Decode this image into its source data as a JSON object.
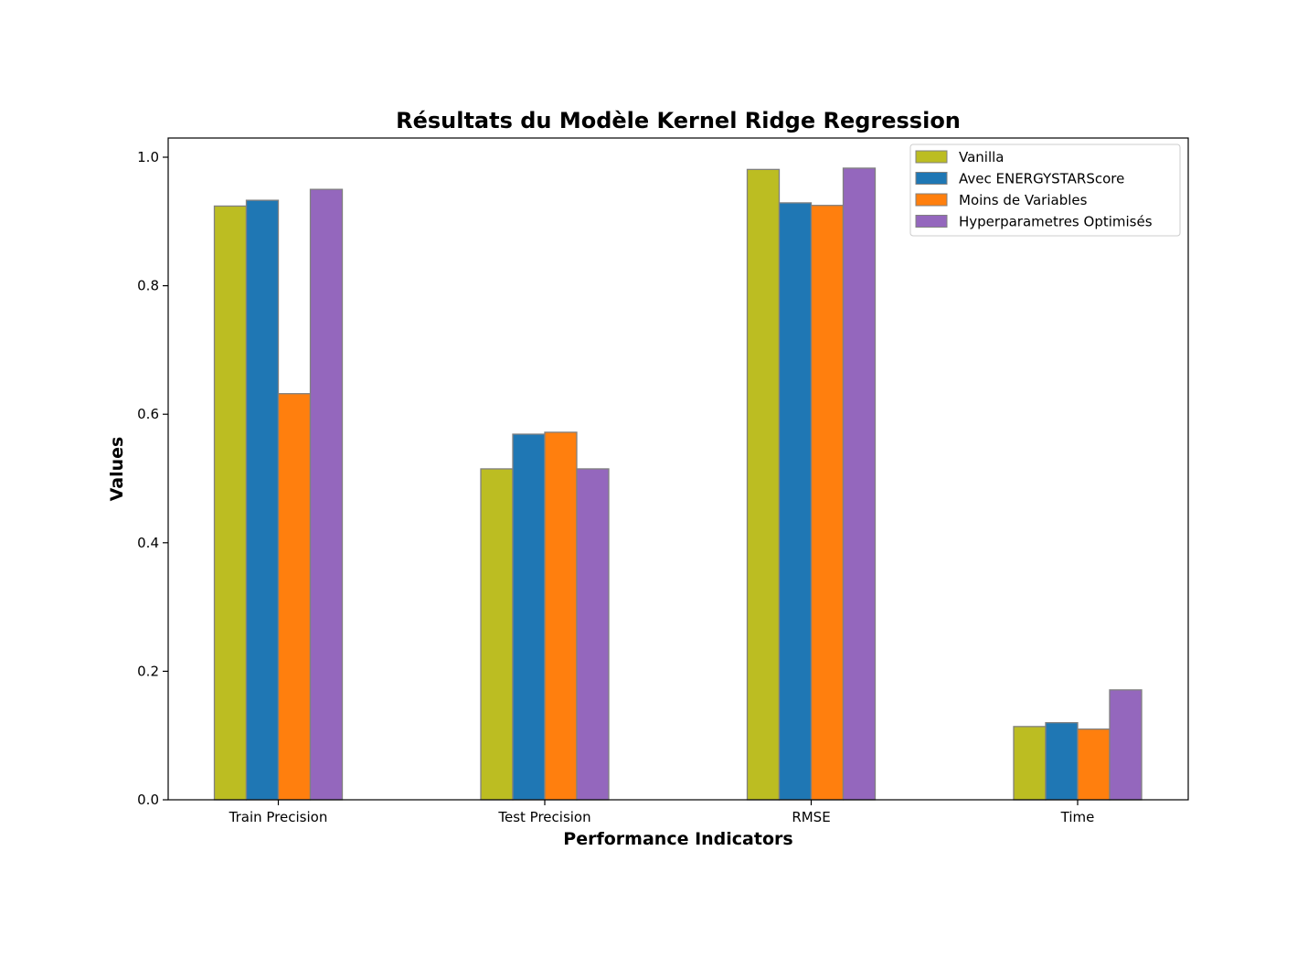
{
  "chart_data": {
    "type": "bar",
    "title": "Résultats du Modèle Kernel Ridge Regression",
    "xlabel": "Performance Indicators",
    "ylabel": "Values",
    "categories": [
      "Train Precision",
      "Test Precision",
      "RMSE",
      "Time"
    ],
    "ylim": [
      0,
      1.03
    ],
    "yticks": [
      "0.0",
      "0.2",
      "0.4",
      "0.6",
      "0.8",
      "1.0"
    ],
    "series": [
      {
        "name": "Vanilla",
        "color": "#bcbd22",
        "values": [
          0.924,
          0.515,
          0.981,
          0.114
        ]
      },
      {
        "name": "Avec ENERGYSTARScore",
        "color": "#1f77b4",
        "values": [
          0.933,
          0.569,
          0.929,
          0.12
        ]
      },
      {
        "name": "Moins de Variables",
        "color": "#ff7f0e",
        "values": [
          0.632,
          0.572,
          0.925,
          0.11
        ]
      },
      {
        "name": "Hyperparametres Optimisés",
        "color": "#9467bd",
        "values": [
          0.95,
          0.515,
          0.983,
          0.171
        ]
      }
    ],
    "bar_edge_color": "#808080",
    "legend_position": "top-right",
    "grid": false
  }
}
